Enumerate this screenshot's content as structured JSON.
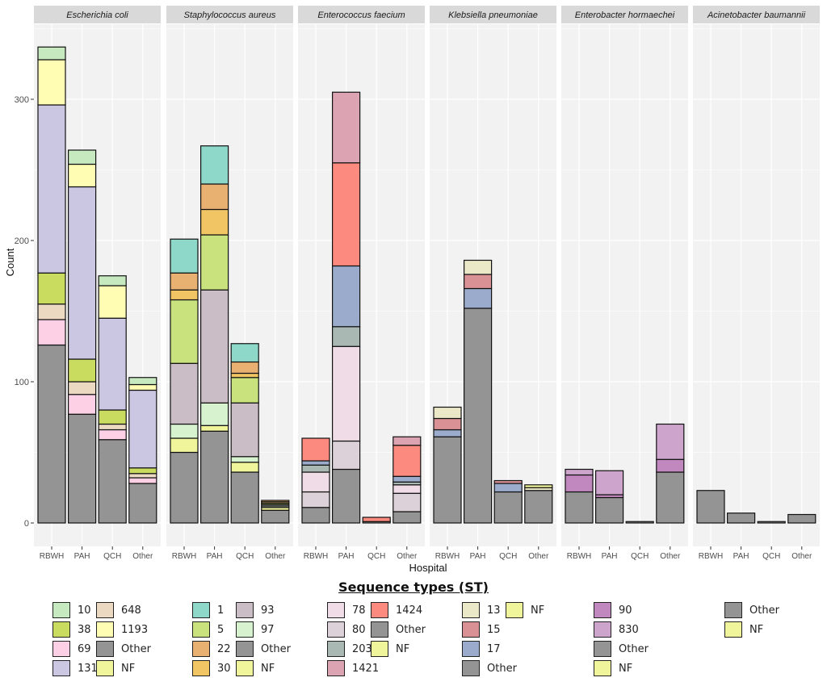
{
  "chart_data": {
    "type": "bar",
    "stacked": true,
    "faceted": true,
    "xlabel": "Hospital",
    "ylabel": "Count",
    "ylim": [
      0,
      340
    ],
    "yticks": [
      0,
      100,
      200,
      300
    ],
    "categories": [
      "RBWH",
      "PAH",
      "QCH",
      "Other"
    ],
    "grid": true,
    "legend_position": "bottom",
    "legend_title": "Sequence types (ST)",
    "colors": {
      "10": "#c7e9c0",
      "38": "#c9dc60",
      "69": "#fdd0e6",
      "131": "#cbc6e2",
      "648": "#ebd9c2",
      "1193": "#fffdb3",
      "Other": "#949494",
      "NF": "#f0f59b",
      "1": "#8dd8c9",
      "5": "#c9e27e",
      "22": "#e8b172",
      "30": "#f2c564",
      "93": "#cbbdc5",
      "97": "#d6f2ce",
      "78": "#efdce6",
      "80": "#dcd1d8",
      "203": "#a9b8b2",
      "1421": "#dca4b3",
      "1424": "#fc8a7f",
      "13": "#ebe8c8",
      "15": "#d99195",
      "17": "#9aabcc",
      "90": "#c188bf",
      "830": "#cca4cc"
    },
    "facets": [
      {
        "title": "Escherichia coli",
        "stack_order": [
          "Other",
          "69",
          "648",
          "38",
          "131",
          "1193",
          "10",
          "NF"
        ],
        "bars": {
          "RBWH": [
            126,
            18,
            11,
            22,
            119,
            32,
            9,
            0
          ],
          "PAH": [
            77,
            14,
            9,
            16,
            122,
            16,
            10,
            0
          ],
          "QCH": [
            59,
            7,
            4,
            10,
            65,
            23,
            7,
            0
          ],
          "Other": [
            28,
            4,
            3,
            4,
            55,
            4,
            5,
            0
          ]
        }
      },
      {
        "title": "Staphylococcus aureus",
        "stack_order": [
          "Other",
          "NF",
          "97",
          "93",
          "5",
          "30",
          "22",
          "1"
        ],
        "bars": {
          "RBWH": [
            50,
            10,
            10,
            43,
            45,
            7,
            12,
            24
          ],
          "PAH": [
            65,
            4,
            16,
            80,
            39,
            18,
            18,
            27
          ],
          "QCH": [
            36,
            7,
            4,
            38,
            18,
            3,
            8,
            13
          ],
          "Other": [
            9,
            2,
            1,
            1,
            1,
            1,
            1,
            0
          ]
        }
      },
      {
        "title": "Enterococcus faecium",
        "stack_order": [
          "Other",
          "80",
          "78",
          "203",
          "17",
          "1424",
          "1421",
          "NF"
        ],
        "bars": {
          "RBWH": [
            11,
            11,
            14,
            5,
            3,
            16,
            0,
            0
          ],
          "PAH": [
            38,
            20,
            67,
            14,
            43,
            73,
            50,
            0
          ],
          "QCH": [
            1,
            0,
            0,
            0,
            0,
            3,
            0,
            0
          ],
          "Other": [
            8,
            13,
            6,
            2,
            4,
            22,
            6,
            0
          ]
        }
      },
      {
        "title": "Klebsiella pneumoniae",
        "stack_order": [
          "Other",
          "17",
          "15",
          "13",
          "NF"
        ],
        "bars": {
          "RBWH": [
            61,
            5,
            8,
            8,
            0
          ],
          "PAH": [
            152,
            14,
            10,
            10,
            0
          ],
          "QCH": [
            22,
            6,
            2,
            0,
            0
          ],
          "Other": [
            23,
            0,
            0,
            2,
            2
          ]
        }
      },
      {
        "title": "Enterobacter hormaechei",
        "stack_order": [
          "Other",
          "90",
          "830",
          "NF"
        ],
        "bars": {
          "RBWH": [
            22,
            12,
            4,
            0
          ],
          "PAH": [
            18,
            2,
            17,
            0
          ],
          "QCH": [
            1,
            0,
            0,
            0
          ],
          "Other": [
            36,
            9,
            25,
            0
          ]
        }
      },
      {
        "title": "Acinetobacter baumannii",
        "stack_order": [
          "Other",
          "NF"
        ],
        "bars": {
          "RBWH": [
            23,
            0
          ],
          "PAH": [
            7,
            0
          ],
          "QCH": [
            1,
            0
          ],
          "Other": [
            6,
            0
          ]
        }
      }
    ],
    "legend_groups": [
      [
        "10",
        "38",
        "69",
        "131",
        "648",
        "1193",
        "Other",
        "NF"
      ],
      [
        "1",
        "5",
        "22",
        "30",
        "93",
        "97",
        "Other",
        "NF"
      ],
      [
        "78",
        "80",
        "203",
        "1421",
        "1424",
        "Other",
        "NF"
      ],
      [
        "13",
        "15",
        "17",
        "Other",
        "NF"
      ],
      [
        "90",
        "830",
        "Other",
        "NF"
      ],
      [
        "Other",
        "NF"
      ]
    ]
  }
}
